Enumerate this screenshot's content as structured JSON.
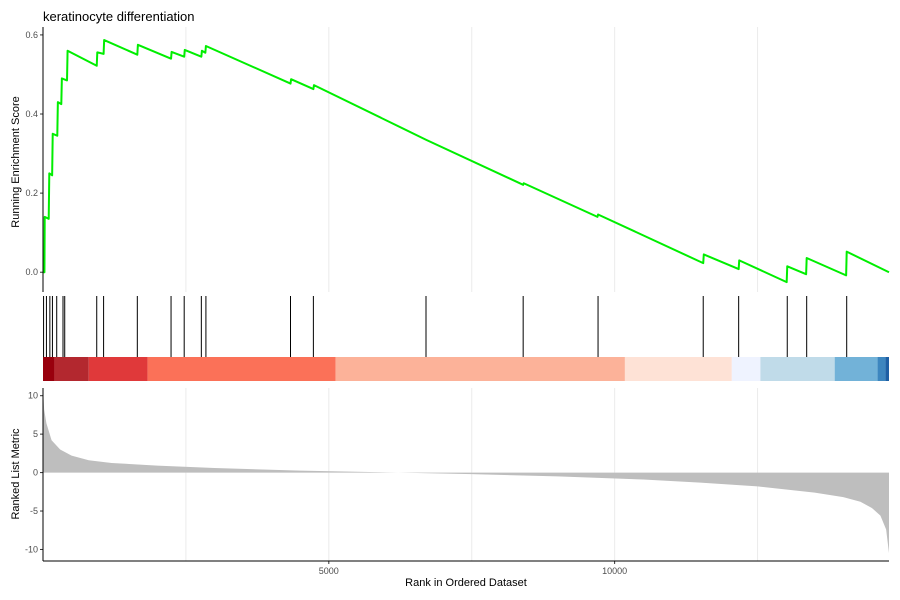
{
  "chart_data": {
    "type": "line",
    "title": "keratinocyte differentiation",
    "xlabel": "Rank in Ordered Dataset",
    "xlim": [
      0,
      14800
    ],
    "x_ticks": [
      5000,
      10000
    ],
    "x_tick_labels": [
      "5000",
      "10000"
    ],
    "grid": true,
    "panels": [
      {
        "name": "enrichment",
        "ylabel": "Running Enrichment Score",
        "ylim": [
          -0.05,
          0.62
        ],
        "y_ticks": [
          0.0,
          0.2,
          0.4,
          0.6
        ],
        "y_tick_labels": [
          "0.0",
          "0.2",
          "0.4",
          "0.6"
        ],
        "line_color": "#00ee00",
        "x": [
          0,
          25,
          30,
          100,
          110,
          160,
          170,
          250,
          260,
          320,
          330,
          420,
          430,
          940,
          950,
          1060,
          1070,
          1650,
          1660,
          2240,
          2250,
          2470,
          2480,
          2770,
          2780,
          2840,
          2850,
          4330,
          4340,
          4730,
          4740,
          6700,
          8400,
          8410,
          9700,
          9710,
          11550,
          11560,
          12170,
          12180,
          13010,
          13020,
          13350,
          13360,
          14050,
          14060,
          14800
        ],
        "y": [
          0.0,
          0.0,
          0.14,
          0.135,
          0.25,
          0.245,
          0.35,
          0.345,
          0.43,
          0.425,
          0.49,
          0.485,
          0.56,
          0.522,
          0.556,
          0.552,
          0.587,
          0.55,
          0.575,
          0.54,
          0.557,
          0.545,
          0.562,
          0.545,
          0.56,
          0.555,
          0.572,
          0.477,
          0.488,
          0.463,
          0.473,
          0.335,
          0.221,
          0.225,
          0.14,
          0.146,
          0.023,
          0.045,
          0.008,
          0.03,
          -0.025,
          0.015,
          -0.005,
          0.036,
          -0.008,
          0.052,
          0.0
        ]
      },
      {
        "name": "gene-hits",
        "hit_positions": [
          10,
          60,
          120,
          165,
          240,
          350,
          380,
          940,
          1060,
          1650,
          2240,
          2470,
          2770,
          2850,
          4330,
          4730,
          6700,
          8400,
          9710,
          11550,
          12170,
          13020,
          13360,
          14060
        ]
      },
      {
        "name": "rank-colorbar",
        "segments": [
          {
            "start": 0,
            "end": 200,
            "color": "#99000d"
          },
          {
            "start": 200,
            "end": 800,
            "color": "#b3282f"
          },
          {
            "start": 800,
            "end": 1830,
            "color": "#e0393a"
          },
          {
            "start": 1830,
            "end": 5120,
            "color": "#fb7158"
          },
          {
            "start": 5120,
            "end": 10180,
            "color": "#fcb299"
          },
          {
            "start": 10180,
            "end": 12050,
            "color": "#fee2d6"
          },
          {
            "start": 12050,
            "end": 12550,
            "color": "#eff3ff"
          },
          {
            "start": 12550,
            "end": 13850,
            "color": "#c0dbe9"
          },
          {
            "start": 13850,
            "end": 14600,
            "color": "#72b2d8"
          },
          {
            "start": 14600,
            "end": 14740,
            "color": "#3d86bf"
          },
          {
            "start": 14740,
            "end": 14800,
            "color": "#1e5fa4"
          }
        ]
      },
      {
        "name": "ranked-metric",
        "ylabel": "Ranked List Metric",
        "ylim": [
          -11.5,
          11
        ],
        "y_ticks": [
          -10,
          -5,
          0,
          5,
          10
        ],
        "y_tick_labels": [
          "-10",
          "-5",
          "0",
          "5",
          "10"
        ],
        "fill_color": "#bebebe",
        "x": [
          0,
          20,
          60,
          150,
          300,
          500,
          800,
          1200,
          2000,
          3000,
          4500,
          6000,
          7500,
          9000,
          10500,
          11500,
          12500,
          13500,
          14000,
          14300,
          14500,
          14650,
          14750,
          14800
        ],
        "y": [
          11.0,
          8.2,
          6.4,
          4.2,
          3.0,
          2.2,
          1.6,
          1.25,
          0.9,
          0.6,
          0.25,
          0.03,
          -0.2,
          -0.5,
          -0.9,
          -1.3,
          -1.8,
          -2.6,
          -3.2,
          -3.8,
          -4.6,
          -5.6,
          -7.4,
          -10.5
        ]
      }
    ]
  }
}
